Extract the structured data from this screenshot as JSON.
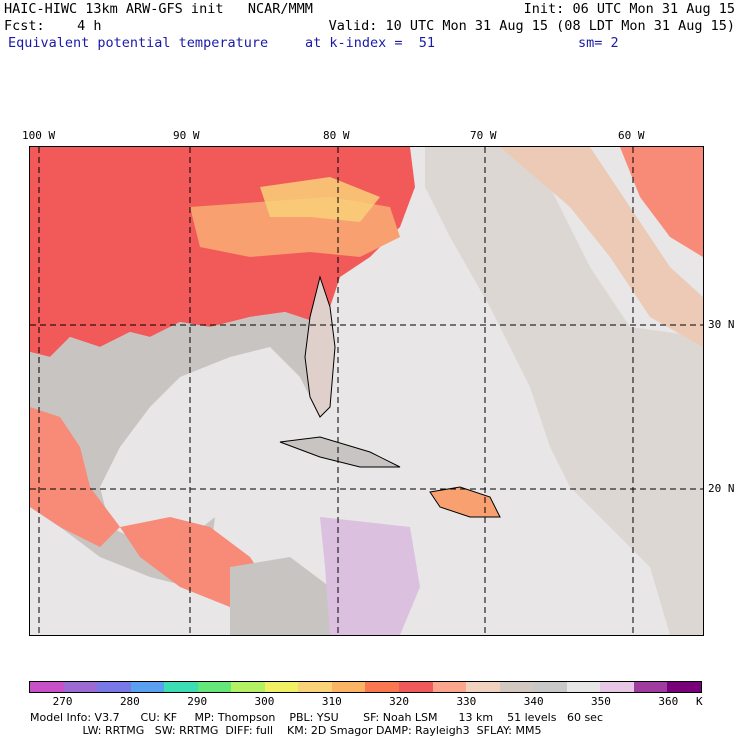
{
  "header": {
    "line1_left": "HAIC-HIWC 13km ARW-GFS init   NCAR/MMM",
    "line1_right": "Init: 06 UTC Mon 31 Aug 15",
    "line2_left": "Fcst:    4 h",
    "line2_right": "Valid: 10 UTC Mon 31 Aug 15 (08 LDT Mon 31 Aug 15)",
    "line3_field": "Equivalent potential temperature",
    "line3_level": "at k-index =  51",
    "line3_smooth": "sm= 2"
  },
  "axes": {
    "lon_labels": [
      "100 W",
      "90 W",
      "80 W",
      "70 W",
      "60 W"
    ],
    "lat_labels": [
      "30 N",
      "20 N"
    ]
  },
  "colorbar": {
    "labels": [
      "270",
      "280",
      "290",
      "300",
      "310",
      "320",
      "330",
      "340",
      "350",
      "360",
      "K"
    ],
    "colors": [
      "#c850c8",
      "#9b6ad2",
      "#7878e6",
      "#5aa0f0",
      "#3cdcb4",
      "#64e678",
      "#b4f064",
      "#f0f064",
      "#fad278",
      "#fab464",
      "#fa7850",
      "#f05a5a",
      "#faa58c",
      "#f0d2be",
      "#d2c8c0",
      "#c8c8c8",
      "#e6e6e6",
      "#e6c8e6",
      "#a03ca0",
      "#780078"
    ]
  },
  "footer": {
    "line1": "Model Info: V3.7      CU: KF     MP: Thompson    PBL: YSU       SF: Noah LSM      13 km    51 levels   60 sec",
    "line2": "               LW: RRTMG   SW: RRTMG  DIFF: full    KM: 2D Smagor DAMP: Rayleigh3  SFLAY: MM5"
  },
  "map_colors": {
    "ocean": "#e8e6e6",
    "land_gray": "#c8c4c2",
    "warm_red": "#f25a5a",
    "warm_salmon": "#f88a78",
    "warm_orange": "#f8a070",
    "warm_yellow": "#f9d078",
    "tan": "#eccab6",
    "lavender": "#dcc0e0"
  }
}
